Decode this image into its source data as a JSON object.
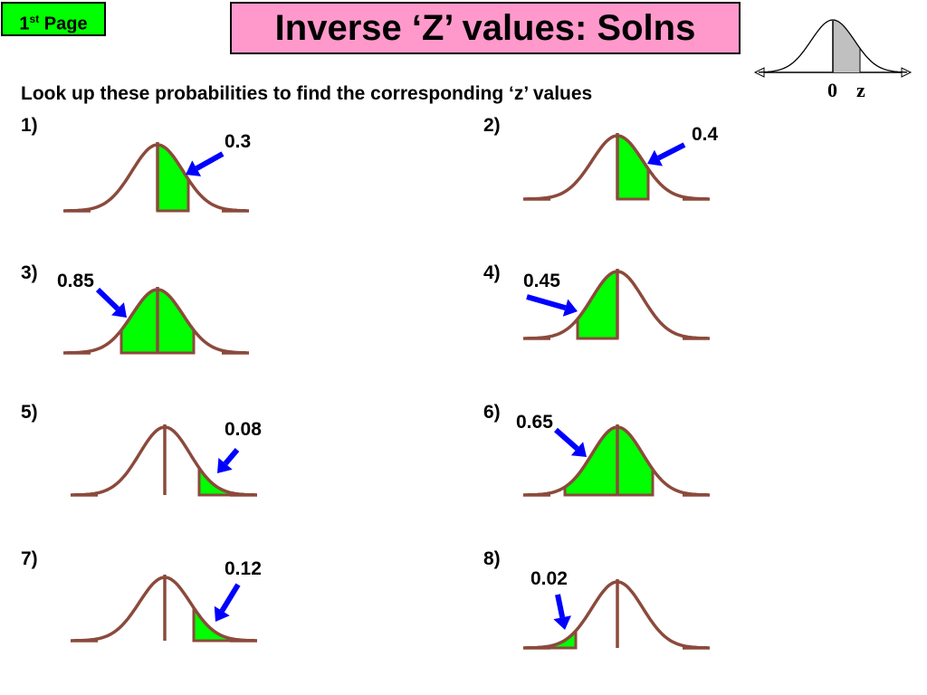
{
  "header": {
    "nav_button_main": "1",
    "nav_button_sup": "st",
    "nav_button_rest": " Page",
    "title": "Inverse ‘Z’ values: Solns"
  },
  "reference_curve": {
    "zero_label": "0",
    "z_label": "z"
  },
  "instruction": "Look up these probabilities to find the corresponding ‘z’ values",
  "colors": {
    "curve": "#8b4a3c",
    "fill": "#00ff00",
    "arrow": "#0000ff",
    "ref_fill": "#c0c0c0"
  },
  "questions": [
    {
      "number": "1)",
      "probability": "0.3",
      "shaded_region": "between mean and z (right)"
    },
    {
      "number": "2)",
      "probability": "0.4",
      "shaded_region": "between mean and z (right)"
    },
    {
      "number": "3)",
      "probability": "0.85",
      "shaded_region": "between -z and z"
    },
    {
      "number": "4)",
      "probability": "0.45",
      "shaded_region": "between -z and mean (left)"
    },
    {
      "number": "5)",
      "probability": "0.08",
      "shaded_region": "right tail"
    },
    {
      "number": "6)",
      "probability": "0.65",
      "shaded_region": "between -z and z"
    },
    {
      "number": "7)",
      "probability": "0.12",
      "shaded_region": "right tail"
    },
    {
      "number": "8)",
      "probability": "0.02",
      "shaded_region": "left tail"
    }
  ]
}
